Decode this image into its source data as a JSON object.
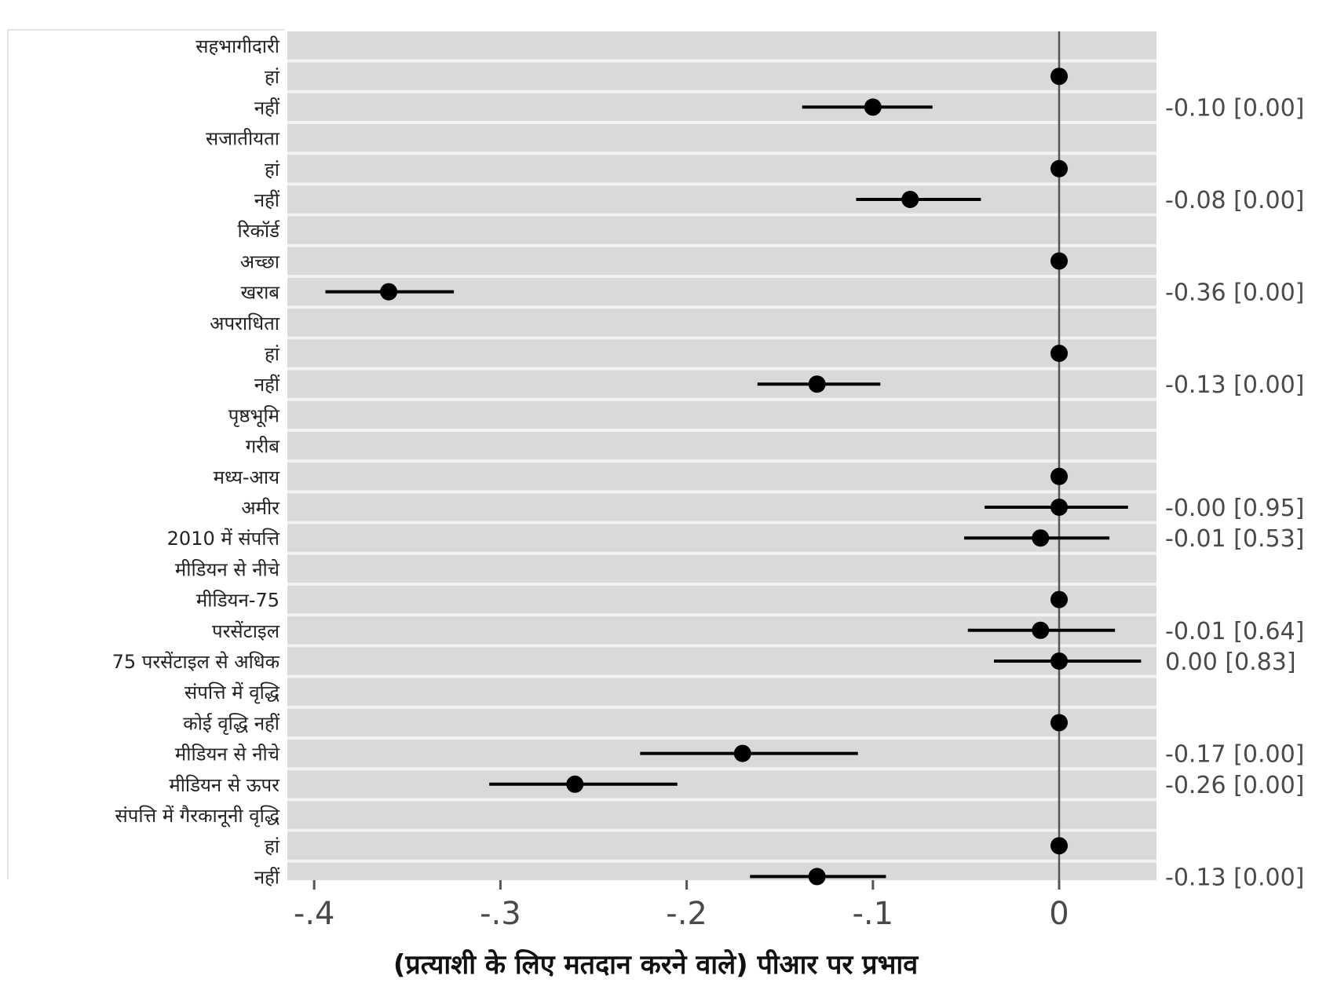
{
  "chart_data": {
    "type": "scatter",
    "subtype": "coefficient-plot",
    "xlabel": "(प्रत्याशी के लिए मतदान करने  वाले) पीआर पर प्रभाव",
    "xlim": [
      -0.42,
      0.055
    ],
    "xticks": [
      {
        "value": -0.4,
        "label": "-.4"
      },
      {
        "value": -0.3,
        "label": "-.3"
      },
      {
        "value": -0.2,
        "label": "-.2"
      },
      {
        "value": -0.1,
        "label": "-.1"
      },
      {
        "value": 0,
        "label": "0"
      }
    ],
    "reference_line": 0,
    "grid": true,
    "rows": [
      {
        "label": "सहभागीदारी"
      },
      {
        "label": "हां",
        "estimate": 0
      },
      {
        "label": "नहीं",
        "estimate": -0.1,
        "ci": [
          -0.138,
          -0.068
        ],
        "text": "-0.10 [0.00]"
      },
      {
        "label": "सजातीयता"
      },
      {
        "label": "हां",
        "estimate": 0
      },
      {
        "label": "नहीं",
        "estimate": -0.08,
        "ci": [
          -0.109,
          -0.042
        ],
        "text": "-0.08 [0.00]"
      },
      {
        "label": "रिकॉर्ड"
      },
      {
        "label": "अच्छा",
        "estimate": 0
      },
      {
        "label": "खराब",
        "estimate": -0.36,
        "ci": [
          -0.394,
          -0.325
        ],
        "text": "-0.36 [0.00]"
      },
      {
        "label": "अपराधिता"
      },
      {
        "label": "हां",
        "estimate": 0
      },
      {
        "label": "नहीं",
        "estimate": -0.13,
        "ci": [
          -0.162,
          -0.096
        ],
        "text": "-0.13 [0.00]"
      },
      {
        "label": "पृष्ठभूमि"
      },
      {
        "label": "गरीब"
      },
      {
        "label": "मध्य-आय",
        "estimate": 0
      },
      {
        "label": "अमीर",
        "estimate": -0.0,
        "ci": [
          -0.04,
          0.037
        ],
        "text": "-0.00 [0.95]"
      },
      {
        "label": "2010 में संपत्ति",
        "estimate": -0.01,
        "ci": [
          -0.051,
          0.027
        ],
        "text": "-0.01 [0.53]"
      },
      {
        "label": "मीडियन से नीचे"
      },
      {
        "label": "मीडियन-75",
        "estimate": 0
      },
      {
        "label": "परसेंटाइल",
        "estimate": -0.01,
        "ci": [
          -0.049,
          0.03
        ],
        "text": "-0.01 [0.64]"
      },
      {
        "label": "75 परसेंटाइल से अधिक",
        "estimate": 0.0,
        "ci": [
          -0.035,
          0.044
        ],
        "text": "0.00 [0.83]"
      },
      {
        "label": "संपत्ति में वृद्धि"
      },
      {
        "label": "कोई वृद्धि नहीं",
        "estimate": 0
      },
      {
        "label": "मीडियन से नीचे",
        "estimate": -0.17,
        "ci": [
          -0.225,
          -0.108
        ],
        "text": "-0.17 [0.00]"
      },
      {
        "label": "मीडियन से ऊपर",
        "estimate": -0.26,
        "ci": [
          -0.306,
          -0.205
        ],
        "text": "-0.26 [0.00]"
      },
      {
        "label": "संपत्ति में गैरकानूनी वृद्धि"
      },
      {
        "label": "हां",
        "estimate": 0
      },
      {
        "label": "नहीं",
        "estimate": -0.13,
        "ci": [
          -0.166,
          -0.093
        ],
        "text": "-0.13 [0.00]"
      }
    ]
  },
  "colors": {
    "panel": "#d9d9d9",
    "gridline": "#f2f2f2",
    "reference_line": "#555555",
    "point": "#000000"
  }
}
